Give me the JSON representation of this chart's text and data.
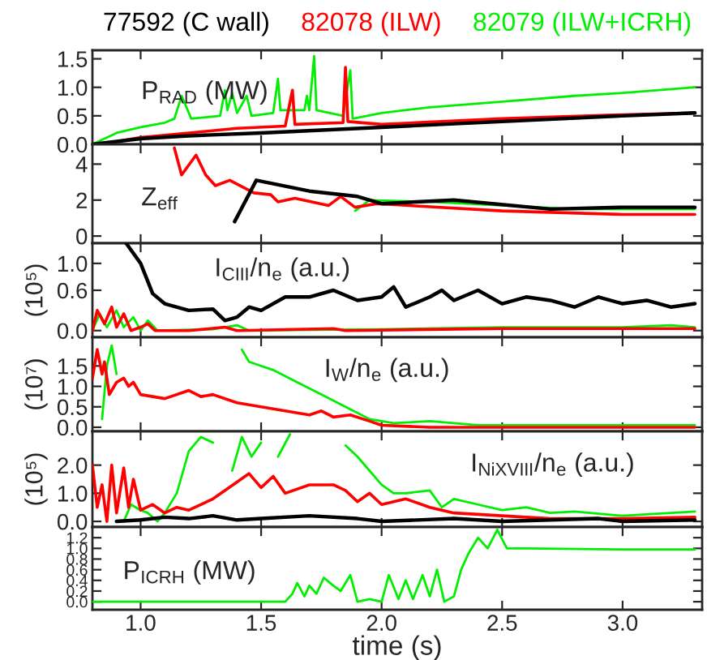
{
  "chart_data": [
    {
      "type": "line",
      "legend": "top",
      "tick_labels": "y",
      "xlim": [
        0.8,
        3.33
      ],
      "ylim": [
        0,
        1.65
      ],
      "yticks": [
        {
          "value": 0,
          "label": "0.0"
        },
        0.5,
        {
          "value": 1,
          "label": "1.0"
        },
        1.5
      ],
      "annotations": [
        "P$_{RAD}$ (MW)"
      ],
      "series": [
        {
          "name": "77592 (C wall)",
          "color": "#000000",
          "x": [
            0.8,
            1.0,
            1.2,
            1.5,
            2.0,
            2.5,
            3.0,
            3.3
          ],
          "values": [
            0,
            0.1,
            0.15,
            0.2,
            0.3,
            0.4,
            0.5,
            0.55
          ]
        },
        {
          "name": "82078 (ILW)",
          "color": "#ff0000",
          "x": [
            0.9,
            1.0,
            1.2,
            1.4,
            1.6,
            1.63,
            1.64,
            1.84,
            1.85,
            1.86,
            2.0,
            2.5,
            3.0,
            3.3
          ],
          "values": [
            0.05,
            0.12,
            0.2,
            0.28,
            0.32,
            0.95,
            0.35,
            0.38,
            1.35,
            0.4,
            0.35,
            0.45,
            0.52,
            0.55
          ]
        },
        {
          "name": "82079 (ILW+ICRH)",
          "color": "#00ee00",
          "x": [
            0.8,
            0.9,
            1.0,
            1.1,
            1.14,
            1.17,
            1.21,
            1.33,
            1.35,
            1.36,
            1.38,
            1.4,
            1.44,
            1.46,
            1.55,
            1.57,
            1.58,
            1.68,
            1.69,
            1.7,
            1.72,
            1.73,
            1.84,
            1.87,
            1.88,
            2.0,
            2.2,
            2.5,
            2.8,
            3.0,
            3.3
          ],
          "values": [
            0,
            0.2,
            0.3,
            0.38,
            0.45,
            0.85,
            0.45,
            0.5,
            0.95,
            0.6,
            0.9,
            0.55,
            0.85,
            0.5,
            0.55,
            1.15,
            0.6,
            0.6,
            0.85,
            0.6,
            1.55,
            0.6,
            0.5,
            1.3,
            0.45,
            0.55,
            0.65,
            0.75,
            0.85,
            0.9,
            1.0
          ]
        }
      ]
    },
    {
      "type": "line",
      "tick_labels": "y",
      "xlim": [
        0.8,
        3.33
      ],
      "ylim": [
        -0.4,
        5.1
      ],
      "yticks": [
        0,
        2,
        4
      ],
      "annotations": [
        "Z$_{eff}$"
      ],
      "series": [
        {
          "color": "#000000",
          "x": [
            1.39,
            1.48,
            1.7,
            1.9,
            2.0,
            2.3,
            2.7,
            3.0,
            3.3
          ],
          "values": [
            0.8,
            3.1,
            2.5,
            2.2,
            1.8,
            2.0,
            1.5,
            1.6,
            1.6
          ]
        },
        {
          "color": "#ff0000",
          "x": [
            1.14,
            1.17,
            1.23,
            1.27,
            1.31,
            1.37,
            1.47,
            1.54,
            1.57,
            1.64,
            1.71,
            1.78,
            1.83,
            1.89,
            1.98,
            2.5,
            3.0,
            3.3
          ],
          "values": [
            4.9,
            3.4,
            4.5,
            3.4,
            2.8,
            3.1,
            2.4,
            2.3,
            1.9,
            2.1,
            1.9,
            1.7,
            2.2,
            1.6,
            1.8,
            1.4,
            1.2,
            1.2
          ]
        },
        {
          "color": "#00ee00",
          "x": [
            1.89,
            1.95,
            2.2,
            2.5,
            2.8,
            3.3
          ],
          "values": [
            1.4,
            2.0,
            1.9,
            1.7,
            1.5,
            1.5
          ]
        }
      ]
    },
    {
      "type": "line",
      "tick_labels": "y",
      "xlim": [
        0.8,
        3.33
      ],
      "ylim": [
        -0.1,
        1.3
      ],
      "yticks": [
        {
          "value": 0,
          "label": "0.0"
        },
        0.6,
        {
          "value": 1,
          "label": "1.0"
        }
      ],
      "ylabel": "(10⁵)",
      "annotations": [
        "I$_{CIII}$/n$_{e}$ (a.u.)"
      ],
      "series": [
        {
          "color": "#000000",
          "x": [
            0.94,
            1.0,
            1.05,
            1.1,
            1.2,
            1.3,
            1.35,
            1.4,
            1.45,
            1.5,
            1.6,
            1.7,
            1.8,
            1.9,
            2.0,
            2.05,
            2.1,
            2.2,
            2.25,
            2.3,
            2.4,
            2.5,
            2.6,
            2.7,
            2.8,
            2.9,
            3.0,
            3.1,
            3.2,
            3.3
          ],
          "values": [
            1.3,
            1.0,
            0.55,
            0.4,
            0.3,
            0.32,
            0.15,
            0.2,
            0.35,
            0.3,
            0.5,
            0.5,
            0.6,
            0.45,
            0.5,
            0.65,
            0.35,
            0.5,
            0.6,
            0.45,
            0.6,
            0.4,
            0.5,
            0.45,
            0.35,
            0.5,
            0.4,
            0.45,
            0.35,
            0.4
          ]
        },
        {
          "color": "#ff0000",
          "x": [
            0.8,
            0.82,
            0.85,
            0.88,
            0.9,
            0.93,
            0.96,
            1.0,
            1.03,
            1.06,
            1.2,
            1.35,
            1.4,
            1.8,
            1.85,
            2.5,
            3.3
          ],
          "values": [
            0,
            0.3,
            0.1,
            0.35,
            0.05,
            0.25,
            0,
            0.05,
            0.1,
            0,
            0,
            0.05,
            0,
            0.03,
            0,
            0.03,
            0.03
          ]
        },
        {
          "color": "#00ee00",
          "x": [
            0.8,
            0.83,
            0.86,
            0.9,
            0.93,
            0.97,
            1.0,
            1.03,
            1.07,
            1.3,
            1.4,
            1.45,
            2.0,
            2.5,
            3.0,
            3.2,
            3.3
          ],
          "values": [
            0,
            0.25,
            0.05,
            0.3,
            0.05,
            0.2,
            0,
            0.15,
            0,
            0.02,
            0.08,
            0,
            0.02,
            0.05,
            0.05,
            0.08,
            0.05
          ]
        }
      ]
    },
    {
      "type": "line",
      "tick_labels": "y",
      "xlim": [
        0.8,
        3.33
      ],
      "ylim": [
        -0.1,
        2.2
      ],
      "yticks": [
        {
          "value": 0,
          "label": "0.0"
        },
        0.5,
        {
          "value": 1,
          "label": "1.0"
        },
        1.5
      ],
      "ylabel": "(10⁷)",
      "annotations": [
        "I$_{W}$/n$_{e}$ (a.u.)"
      ],
      "series": [
        {
          "color": "#ff0000",
          "x": [
            0.8,
            0.82,
            0.84,
            0.85,
            0.87,
            0.9,
            0.93,
            0.95,
            0.97,
            1.0,
            1.1,
            1.2,
            1.25,
            1.3,
            1.4,
            1.5,
            1.6,
            1.7,
            1.75,
            1.8,
            1.87,
            1.95,
            2.0,
            2.2,
            2.5,
            3.3
          ],
          "values": [
            1.2,
            1.9,
            1.3,
            1.6,
            0.8,
            1.1,
            1.2,
            1.0,
            1.1,
            0.8,
            0.7,
            0.9,
            0.75,
            0.8,
            0.6,
            0.5,
            0.4,
            0.3,
            0.4,
            0.25,
            0.3,
            0.15,
            0.05,
            0,
            0,
            0
          ]
        },
        {
          "color": "#00ee00",
          "x": [
            0.84,
            0.86,
            0.88,
            0.9,
            0.92,
            1.42,
            1.45,
            1.55,
            1.65,
            1.75,
            1.85,
            1.95,
            2.05,
            2.2,
            2.4,
            3.3
          ],
          "values": [
            0.2,
            1.5,
            2.0,
            1.3,
            null,
            1.9,
            1.6,
            1.4,
            1.1,
            0.8,
            0.5,
            0.2,
            0.1,
            0.15,
            0.05,
            0.05
          ]
        }
      ]
    },
    {
      "type": "line",
      "tick_labels": "y",
      "xlim": [
        0.8,
        3.33
      ],
      "ylim": [
        -0.2,
        3.2
      ],
      "yticks": [
        {
          "value": 0,
          "label": "0.0"
        },
        {
          "value": 1,
          "label": "1.0"
        },
        {
          "value": 2,
          "label": "2.0"
        }
      ],
      "ylabel": "(10⁵)",
      "annotations": [
        "I$_{NiXVIII}$/n$_{e}$ (a.u.)"
      ],
      "series": [
        {
          "color": "#000000",
          "x": [
            0.9,
            1.0,
            1.1,
            1.2,
            1.3,
            1.4,
            1.5,
            1.7,
            1.9,
            2.0,
            2.3,
            2.5,
            2.7,
            2.9,
            3.0,
            3.3
          ],
          "values": [
            0,
            0.05,
            0.15,
            0.1,
            0.2,
            0.05,
            0.1,
            0.2,
            0.1,
            0,
            0.1,
            0,
            0.05,
            0.1,
            0,
            0.05
          ]
        },
        {
          "color": "#ff0000",
          "x": [
            0.8,
            0.82,
            0.84,
            0.86,
            0.88,
            0.9,
            0.93,
            0.95,
            0.97,
            1.0,
            1.05,
            1.1,
            1.15,
            1.2,
            1.3,
            1.4,
            1.45,
            1.5,
            1.55,
            1.6,
            1.7,
            1.8,
            1.85,
            1.9,
            1.95,
            2.0,
            2.1,
            2.2,
            2.3,
            2.5,
            2.7,
            3.0,
            3.3
          ],
          "values": [
            2.0,
            0.5,
            1.3,
            0,
            2.0,
            0.3,
            1.9,
            0.5,
            1.5,
            0.4,
            0.6,
            0.3,
            0.5,
            0.4,
            0.8,
            1.4,
            1.7,
            1.2,
            1.6,
            1.0,
            1.3,
            1.3,
            1.1,
            0.7,
            1.0,
            0.6,
            0.8,
            0.5,
            0.3,
            0.2,
            0.1,
            0.1,
            0.15
          ]
        },
        {
          "color": "#00ee00",
          "x": [
            0.93,
            0.96,
            1.0,
            1.03,
            1.07,
            1.1,
            1.15,
            1.2,
            1.25,
            1.3,
            1.33,
            1.38,
            1.42,
            1.46,
            1.5,
            1.53,
            1.57,
            1.62,
            1.7,
            1.85,
            1.9,
            2.0,
            2.05,
            2.1,
            2.2,
            2.25,
            2.3,
            2.4,
            2.5,
            2.6,
            2.7,
            2.8,
            3.0,
            3.2,
            3.3
          ],
          "values": [
            0,
            0.6,
            0.4,
            0.3,
            0,
            0.3,
            1.0,
            2.5,
            3.0,
            2.8,
            null,
            1.8,
            3.0,
            2.3,
            2.8,
            null,
            2.3,
            3.1,
            null,
            2.7,
            2.3,
            1.3,
            1.0,
            1.0,
            1.1,
            0.5,
            0.8,
            0.6,
            0.4,
            0.5,
            0.3,
            0.35,
            0.2,
            0.3,
            0.35
          ]
        }
      ]
    },
    {
      "type": "line",
      "xlim": [
        0.8,
        3.33
      ],
      "ylim": [
        -0.15,
        1.4
      ],
      "xticks": [
        {
          "value": 1,
          "label": "1.0"
        },
        1.5,
        {
          "value": 2,
          "label": "2.0"
        },
        2.5,
        {
          "value": 3,
          "label": "3.0"
        }
      ],
      "yticks": [
        {
          "value": 0,
          "label": "0.0"
        },
        0.2,
        0.4,
        0.6,
        0.8,
        {
          "value": 1,
          "label": "1.0"
        },
        1.2
      ],
      "xlabel": "time (s)",
      "annotations": [
        "P$_{ICRH}$ (MW)"
      ],
      "series": [
        {
          "color": "#00ee00",
          "x": [
            0.8,
            1.6,
            1.63,
            1.65,
            1.68,
            1.7,
            1.73,
            1.76,
            1.8,
            1.83,
            1.87,
            1.9,
            1.95,
            2.0,
            2.03,
            2.07,
            2.1,
            2.13,
            2.17,
            2.2,
            2.23,
            2.26,
            2.3,
            2.33,
            2.36,
            2.4,
            2.44,
            2.48,
            2.52,
            2.6,
            3.0,
            3.3
          ],
          "values": [
            0,
            0,
            0.15,
            0.35,
            0.1,
            0.3,
            0.15,
            0.45,
            0.3,
            0.2,
            0.5,
            0,
            0.05,
            0,
            0.5,
            0.05,
            0.4,
            0.05,
            0.5,
            0.1,
            0.6,
            0,
            0.1,
            0.6,
            0.9,
            1.2,
            1.0,
            1.35,
            1.0,
            1.0,
            0.98,
            0.98
          ]
        }
      ]
    }
  ]
}
